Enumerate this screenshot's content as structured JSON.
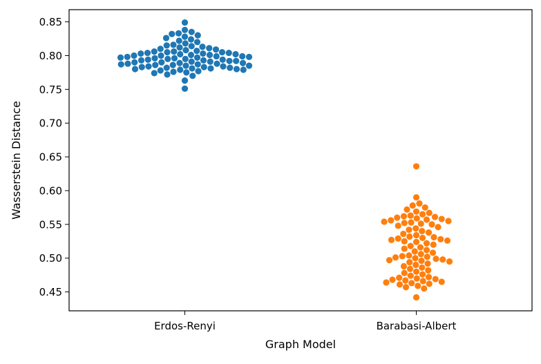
{
  "chart_data": {
    "type": "scatter",
    "subtype": "swarm",
    "title": "",
    "xlabel": "Graph Model",
    "ylabel": "Wasserstein Distance",
    "categories": [
      "Erdos-Renyi",
      "Barabasi-Albert"
    ],
    "ylim": [
      0.422,
      0.868
    ],
    "yticks": [
      0.45,
      0.5,
      0.55,
      0.6,
      0.65,
      0.7,
      0.75,
      0.8,
      0.85
    ],
    "ytick_labels": [
      "0.45",
      "0.50",
      "0.55",
      "0.60",
      "0.65",
      "0.70",
      "0.75",
      "0.80",
      "0.85"
    ],
    "grid": false,
    "legend": "none",
    "series": [
      {
        "category": "Erdos-Renyi",
        "color": "#1f77b4",
        "values": [
          0.751,
          0.763,
          0.77,
          0.772,
          0.774,
          0.775,
          0.776,
          0.777,
          0.778,
          0.779,
          0.779,
          0.78,
          0.78,
          0.781,
          0.781,
          0.782,
          0.782,
          0.783,
          0.783,
          0.784,
          0.784,
          0.785,
          0.785,
          0.786,
          0.786,
          0.787,
          0.787,
          0.788,
          0.788,
          0.789,
          0.789,
          0.79,
          0.79,
          0.791,
          0.791,
          0.792,
          0.792,
          0.793,
          0.793,
          0.794,
          0.794,
          0.795,
          0.795,
          0.796,
          0.796,
          0.797,
          0.797,
          0.798,
          0.798,
          0.799,
          0.799,
          0.8,
          0.8,
          0.801,
          0.801,
          0.802,
          0.802,
          0.803,
          0.803,
          0.804,
          0.804,
          0.805,
          0.805,
          0.806,
          0.806,
          0.807,
          0.808,
          0.809,
          0.81,
          0.811,
          0.812,
          0.813,
          0.814,
          0.815,
          0.816,
          0.818,
          0.82,
          0.822,
          0.824,
          0.826,
          0.828,
          0.83,
          0.832,
          0.833,
          0.835,
          0.838,
          0.849
        ]
      },
      {
        "category": "Barabasi-Albert",
        "color": "#ff7f0e",
        "values": [
          0.442,
          0.455,
          0.457,
          0.459,
          0.461,
          0.462,
          0.463,
          0.464,
          0.465,
          0.466,
          0.467,
          0.468,
          0.469,
          0.47,
          0.471,
          0.472,
          0.474,
          0.476,
          0.478,
          0.48,
          0.482,
          0.484,
          0.486,
          0.488,
          0.49,
          0.492,
          0.494,
          0.495,
          0.496,
          0.497,
          0.498,
          0.499,
          0.5,
          0.501,
          0.502,
          0.503,
          0.504,
          0.506,
          0.508,
          0.51,
          0.512,
          0.514,
          0.516,
          0.518,
          0.52,
          0.522,
          0.524,
          0.525,
          0.526,
          0.527,
          0.528,
          0.529,
          0.53,
          0.531,
          0.532,
          0.534,
          0.536,
          0.538,
          0.54,
          0.542,
          0.544,
          0.546,
          0.548,
          0.55,
          0.551,
          0.552,
          0.553,
          0.554,
          0.555,
          0.556,
          0.557,
          0.558,
          0.559,
          0.56,
          0.561,
          0.562,
          0.563,
          0.565,
          0.567,
          0.569,
          0.572,
          0.575,
          0.578,
          0.581,
          0.59,
          0.636
        ]
      }
    ]
  }
}
